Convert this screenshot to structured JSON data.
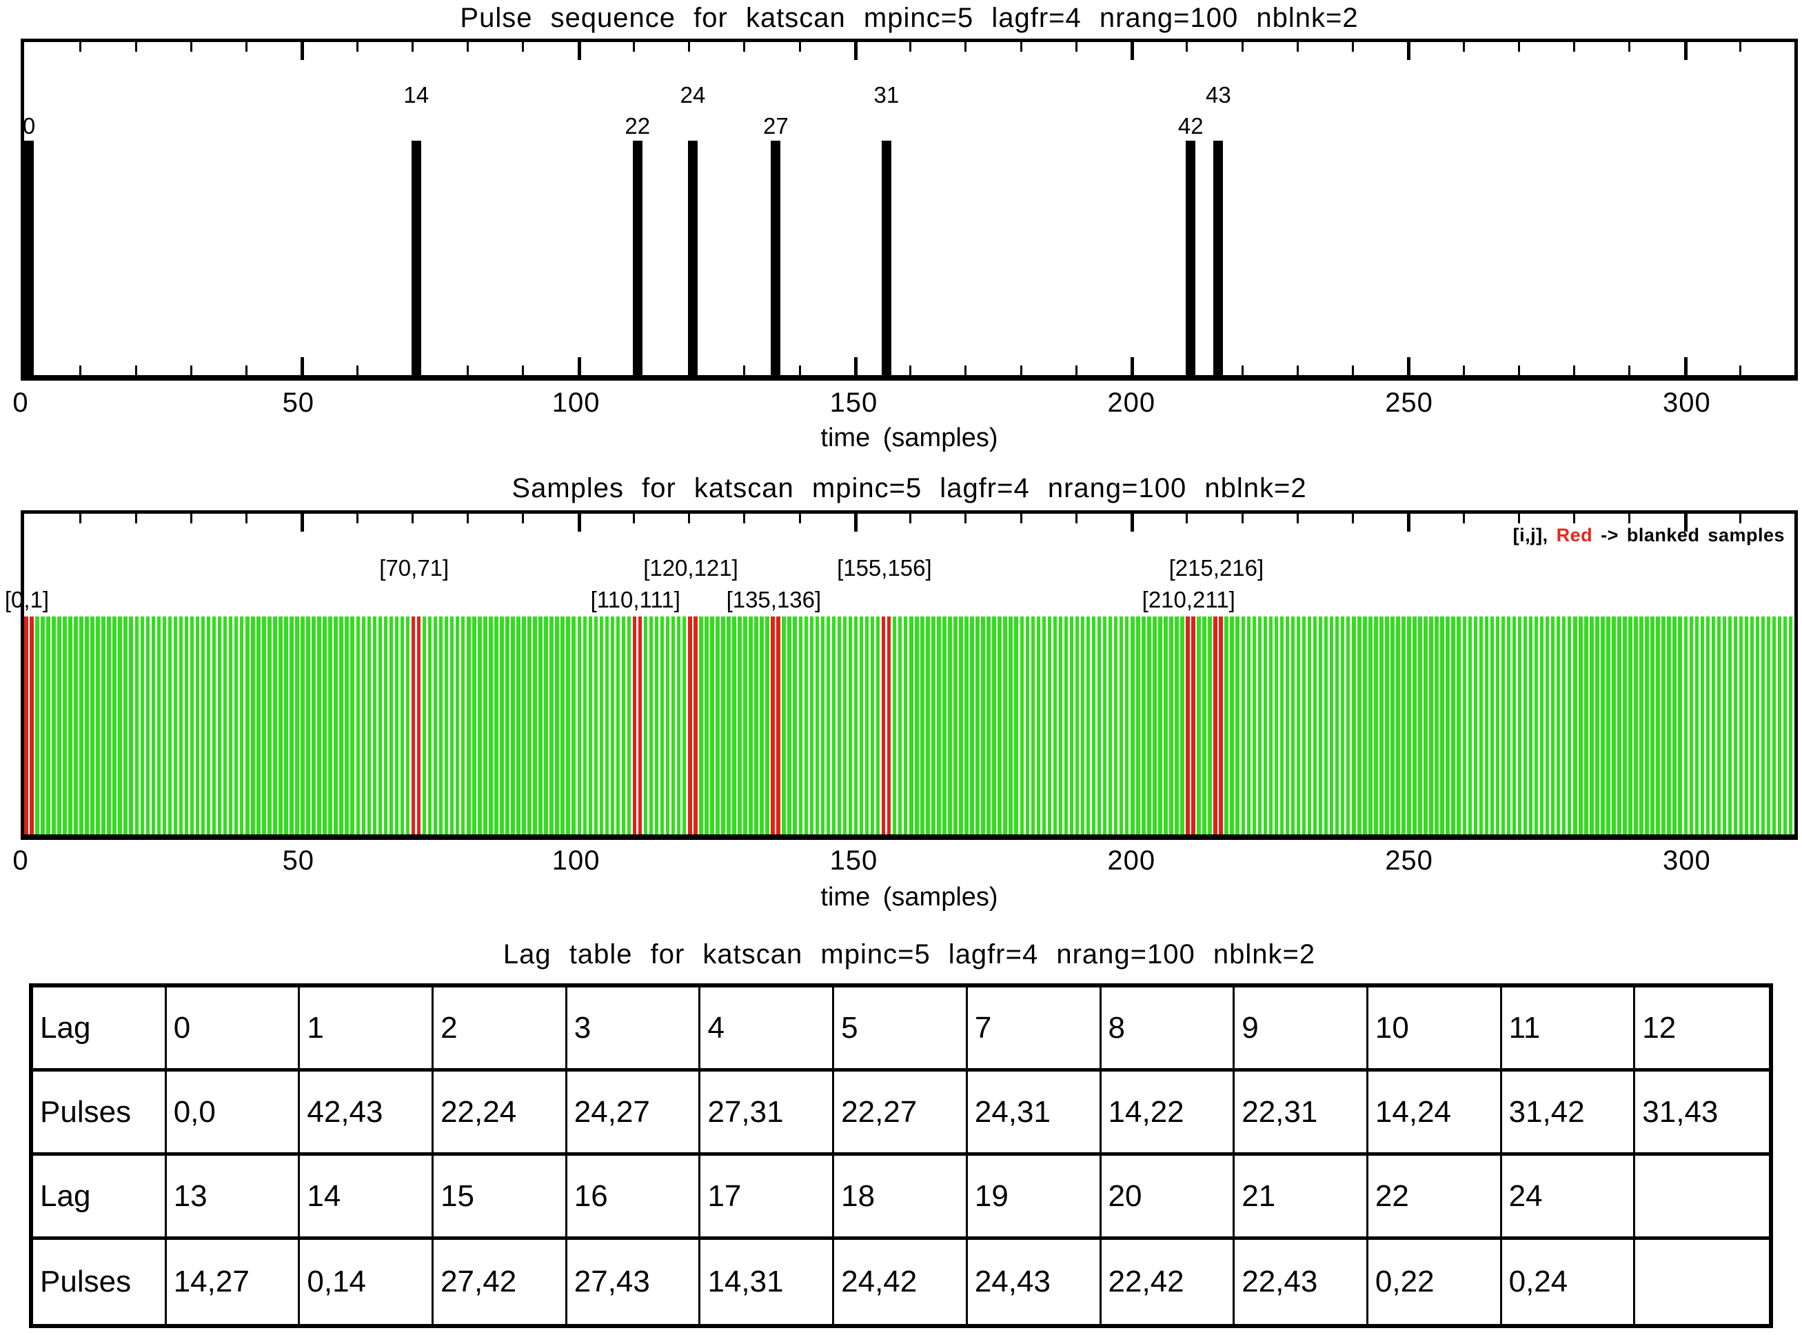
{
  "colors": {
    "axis": "#000000",
    "pulse_bar": "#000000",
    "sample_green": "#33dd1e",
    "blank_red": "#dd2318",
    "legend_red": "#e8251c"
  },
  "chart_data": [
    {
      "type": "bar",
      "title": "Pulse sequence for katscan mpinc=5 lagfr=4 nrang=100 nblnk=2",
      "xlabel": "time (samples)",
      "xlim": [
        0,
        320
      ],
      "x_major_ticks": [
        0,
        50,
        100,
        150,
        200,
        250,
        300
      ],
      "minor_tick_step": 10,
      "grid": false,
      "pulse_numbers": [
        0,
        14,
        22,
        24,
        27,
        31,
        42,
        43
      ],
      "pulse_times": [
        0,
        70,
        110,
        120,
        135,
        155,
        210,
        215
      ],
      "label_stagger": [
        "low",
        "high",
        "low",
        "high",
        "low",
        "high",
        "low",
        "high"
      ]
    },
    {
      "type": "bar",
      "title": "Samples for katscan mpinc=5 lagfr=4 nrang=100 nblnk=2",
      "xlabel": "time (samples)",
      "xlim": [
        0,
        320
      ],
      "x_major_ticks": [
        0,
        50,
        100,
        150,
        200,
        250,
        300
      ],
      "minor_tick_step": 10,
      "n_samples": 320,
      "blanked_samples": [
        0,
        1,
        70,
        71,
        110,
        111,
        120,
        121,
        135,
        136,
        155,
        156,
        210,
        211,
        215,
        216
      ],
      "pair_labels": [
        {
          "text": "[0,1]",
          "x": 0.5,
          "row": "low"
        },
        {
          "text": "[70,71]",
          "x": 70.5,
          "row": "high"
        },
        {
          "text": "[110,111]",
          "x": 110.5,
          "row": "low"
        },
        {
          "text": "[120,121]",
          "x": 120.5,
          "row": "high"
        },
        {
          "text": "[135,136]",
          "x": 135.5,
          "row": "low"
        },
        {
          "text": "[155,156]",
          "x": 155.5,
          "row": "high"
        },
        {
          "text": "[210,211]",
          "x": 210.5,
          "row": "low"
        },
        {
          "text": "[215,216]",
          "x": 215.5,
          "row": "high"
        }
      ],
      "legend_parts": {
        "prefix": "[i,j], ",
        "red_word": "Red",
        "suffix": " -> blanked samples"
      }
    },
    {
      "type": "table",
      "title": "Lag table for katscan mpinc=5 lagfr=4 nrang=100 nblnk=2",
      "rows": [
        [
          "Lag",
          "0",
          "1",
          "2",
          "3",
          "4",
          "5",
          "7",
          "8",
          "9",
          "10",
          "11",
          "12"
        ],
        [
          "Pulses",
          "0,0",
          "42,43",
          "22,24",
          "24,27",
          "27,31",
          "22,27",
          "24,31",
          "14,22",
          "22,31",
          "14,24",
          "31,42",
          "31,43"
        ],
        [
          "Lag",
          "13",
          "14",
          "15",
          "16",
          "17",
          "18",
          "19",
          "20",
          "21",
          "22",
          "24",
          ""
        ],
        [
          "Pulses",
          "14,27",
          "0,14",
          "27,42",
          "27,43",
          "14,31",
          "24,42",
          "24,43",
          "22,42",
          "22,43",
          "0,22",
          "0,24",
          ""
        ]
      ]
    }
  ]
}
